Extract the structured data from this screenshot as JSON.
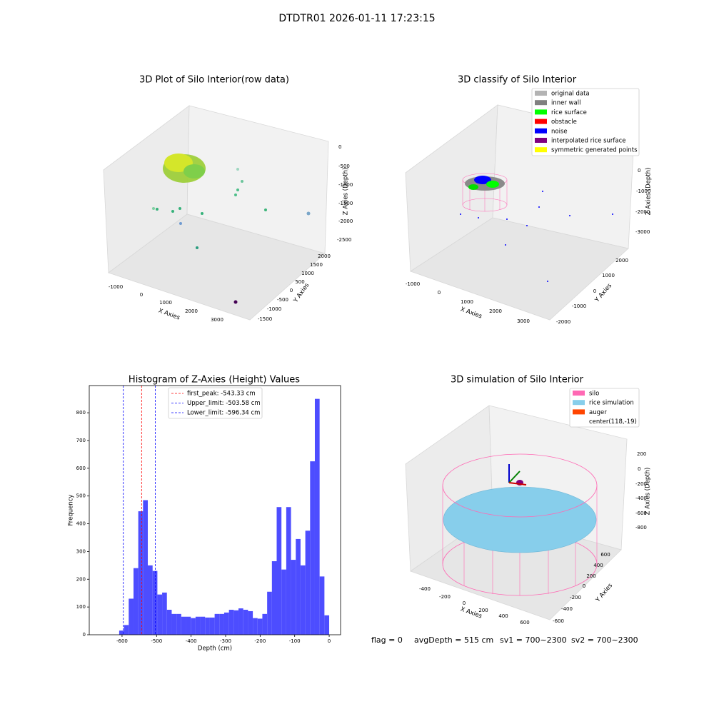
{
  "suptitle": "DTDTR01 2026-01-11 17:23:15",
  "chart_data": [
    {
      "type": "scatter3d",
      "title": "3D Plot of Silo Interior(row data)",
      "xlabel": "X Axies",
      "ylabel": "Y Axies",
      "zlabel": "Z Axies (Depth)",
      "xticks": [
        -1000,
        0,
        1000,
        2000,
        3000
      ],
      "yticks": [
        -1500,
        -1000,
        -500,
        0,
        500,
        1000,
        1500,
        2000
      ],
      "zticks": [
        0,
        -500,
        -1000,
        -1500,
        -2000,
        -2500
      ]
    },
    {
      "type": "scatter3d",
      "title": "3D classify of Silo Interior",
      "xlabel": "X Axies",
      "ylabel": "Y Axies",
      "zlabel": "Z Axies (Depth)",
      "xticks": [
        -1000,
        0,
        1000,
        2000,
        3000
      ],
      "yticks": [
        -2000,
        -1000,
        0,
        1000,
        2000
      ],
      "zticks": [
        0,
        -1000,
        -2000,
        -3000
      ],
      "legend": [
        {
          "name": "original data",
          "color": "#b3b3b3"
        },
        {
          "name": "inner wall",
          "color": "#808080"
        },
        {
          "name": "rice surface",
          "color": "#00ff00"
        },
        {
          "name": "obstacle",
          "color": "#ff0000"
        },
        {
          "name": "noise",
          "color": "#0000ff"
        },
        {
          "name": "interpolated rice surface",
          "color": "#800080"
        },
        {
          "name": "symmetric generated points",
          "color": "#ffff00"
        }
      ]
    },
    {
      "type": "histogram",
      "title": "Histogram of Z-Axies (Height) Values",
      "xlabel": "Depth (cm)",
      "ylabel": "Frequency",
      "color": "#4d4dff",
      "bins": [
        -608.3,
        -594.5,
        -580.7,
        -566.8,
        -553.0,
        -539.2,
        -525.4,
        -511.5,
        -497.7,
        -483.9,
        -470.1,
        -456.2,
        -442.4,
        -428.6,
        -414.8,
        -400.9,
        -387.1,
        -373.3,
        -359.5,
        -345.6,
        -331.8,
        -318.0,
        -304.2,
        -290.3,
        -276.5,
        -262.7,
        -248.9,
        -235.0,
        -221.2,
        -207.4,
        -193.6,
        -179.7,
        -165.9,
        -152.1,
        -138.3,
        -124.4,
        -110.6,
        -96.8,
        -83.0,
        -69.1,
        -55.3,
        -41.5,
        -27.7,
        -13.8,
        0.0
      ],
      "values": [
        15,
        35,
        130,
        240,
        445,
        485,
        250,
        230,
        145,
        152,
        90,
        75,
        75,
        65,
        65,
        60,
        65,
        65,
        62,
        62,
        75,
        75,
        80,
        90,
        88,
        95,
        90,
        85,
        60,
        58,
        75,
        155,
        265,
        460,
        235,
        460,
        270,
        345,
        250,
        375,
        625,
        850,
        210,
        70
      ],
      "lines": [
        {
          "name": "first_peak: -543.33 cm",
          "value": -543.33,
          "color": "#ff0000"
        },
        {
          "name": "Upper_limit: -503.58 cm",
          "value": -503.58,
          "color": "#0000ff"
        },
        {
          "name": "Lower_limit: -596.34 cm",
          "value": -596.34,
          "color": "#0000ff"
        }
      ],
      "xlim": [
        -695,
        33
      ],
      "ylim": [
        0,
        898
      ],
      "xticks": [
        -600,
        -500,
        -400,
        -300,
        -200,
        -100,
        0
      ],
      "yticks": [
        0,
        100,
        200,
        300,
        400,
        500,
        600,
        700,
        800
      ]
    },
    {
      "type": "surface3d",
      "title": "3D simulation of Silo Interior",
      "xlabel": "X Axies",
      "ylabel": "Y Axies",
      "zlabel": "Z Axies (Depth)",
      "xticks": [
        -400,
        -200,
        0,
        200,
        400,
        600
      ],
      "yticks": [
        -600,
        -400,
        -200,
        0,
        200,
        400,
        600
      ],
      "zticks": [
        200,
        0,
        -200,
        -400,
        -600,
        -800
      ],
      "legend": [
        {
          "name": "silo",
          "color": "#ff69b4"
        },
        {
          "name": "rice simulation",
          "color": "#87ceeb"
        },
        {
          "name": "auger",
          "color": "#ff4500"
        },
        {
          "name": "center(118,-19)"
        }
      ]
    }
  ],
  "footer": [
    "flag = 0",
    "avgDepth = 515 cm",
    "sv1 = 700~2300",
    "sv2 = 700~2300"
  ]
}
